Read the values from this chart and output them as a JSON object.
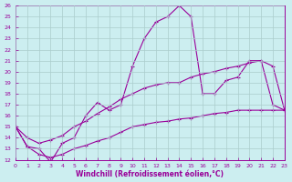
{
  "xlabel": "Windchill (Refroidissement éolien,°C)",
  "bg_color": "#cceef0",
  "line_color": "#990099",
  "grid_color": "#aadddd",
  "xlim": [
    0,
    23
  ],
  "ylim": [
    12,
    26
  ],
  "xticks": [
    0,
    1,
    2,
    3,
    4,
    5,
    6,
    7,
    8,
    9,
    10,
    11,
    12,
    13,
    14,
    15,
    16,
    17,
    18,
    19,
    20,
    21,
    22,
    23
  ],
  "yticks": [
    12,
    13,
    14,
    15,
    16,
    17,
    18,
    19,
    20,
    21,
    22,
    23,
    24,
    25,
    26
  ],
  "series": [
    [
      15.0,
      13.2,
      13.0,
      11.8,
      13.5,
      14.0,
      16.0,
      17.2,
      16.5,
      17.0,
      20.5,
      23.0,
      24.5,
      25.0,
      26.0,
      25.0,
      18.0,
      18.0,
      19.2,
      19.5,
      21.0,
      21.0,
      17.0,
      16.5
    ],
    [
      15.0,
      14.0,
      13.5,
      13.8,
      14.2,
      15.0,
      15.5,
      16.2,
      16.8,
      17.5,
      18.0,
      18.5,
      18.8,
      19.0,
      19.0,
      19.5,
      19.8,
      20.0,
      20.3,
      20.5,
      20.8,
      21.0,
      20.5,
      16.5
    ],
    [
      15.0,
      13.2,
      12.5,
      12.2,
      12.5,
      13.0,
      13.3,
      13.7,
      14.0,
      14.5,
      15.0,
      15.2,
      15.4,
      15.5,
      15.7,
      15.8,
      16.0,
      16.2,
      16.3,
      16.5,
      16.5,
      16.5,
      16.5,
      16.5
    ]
  ],
  "marker": "+",
  "markersize": 3,
  "linewidth": 0.8,
  "tick_fontsize": 4.5,
  "xlabel_fontsize": 5.5
}
